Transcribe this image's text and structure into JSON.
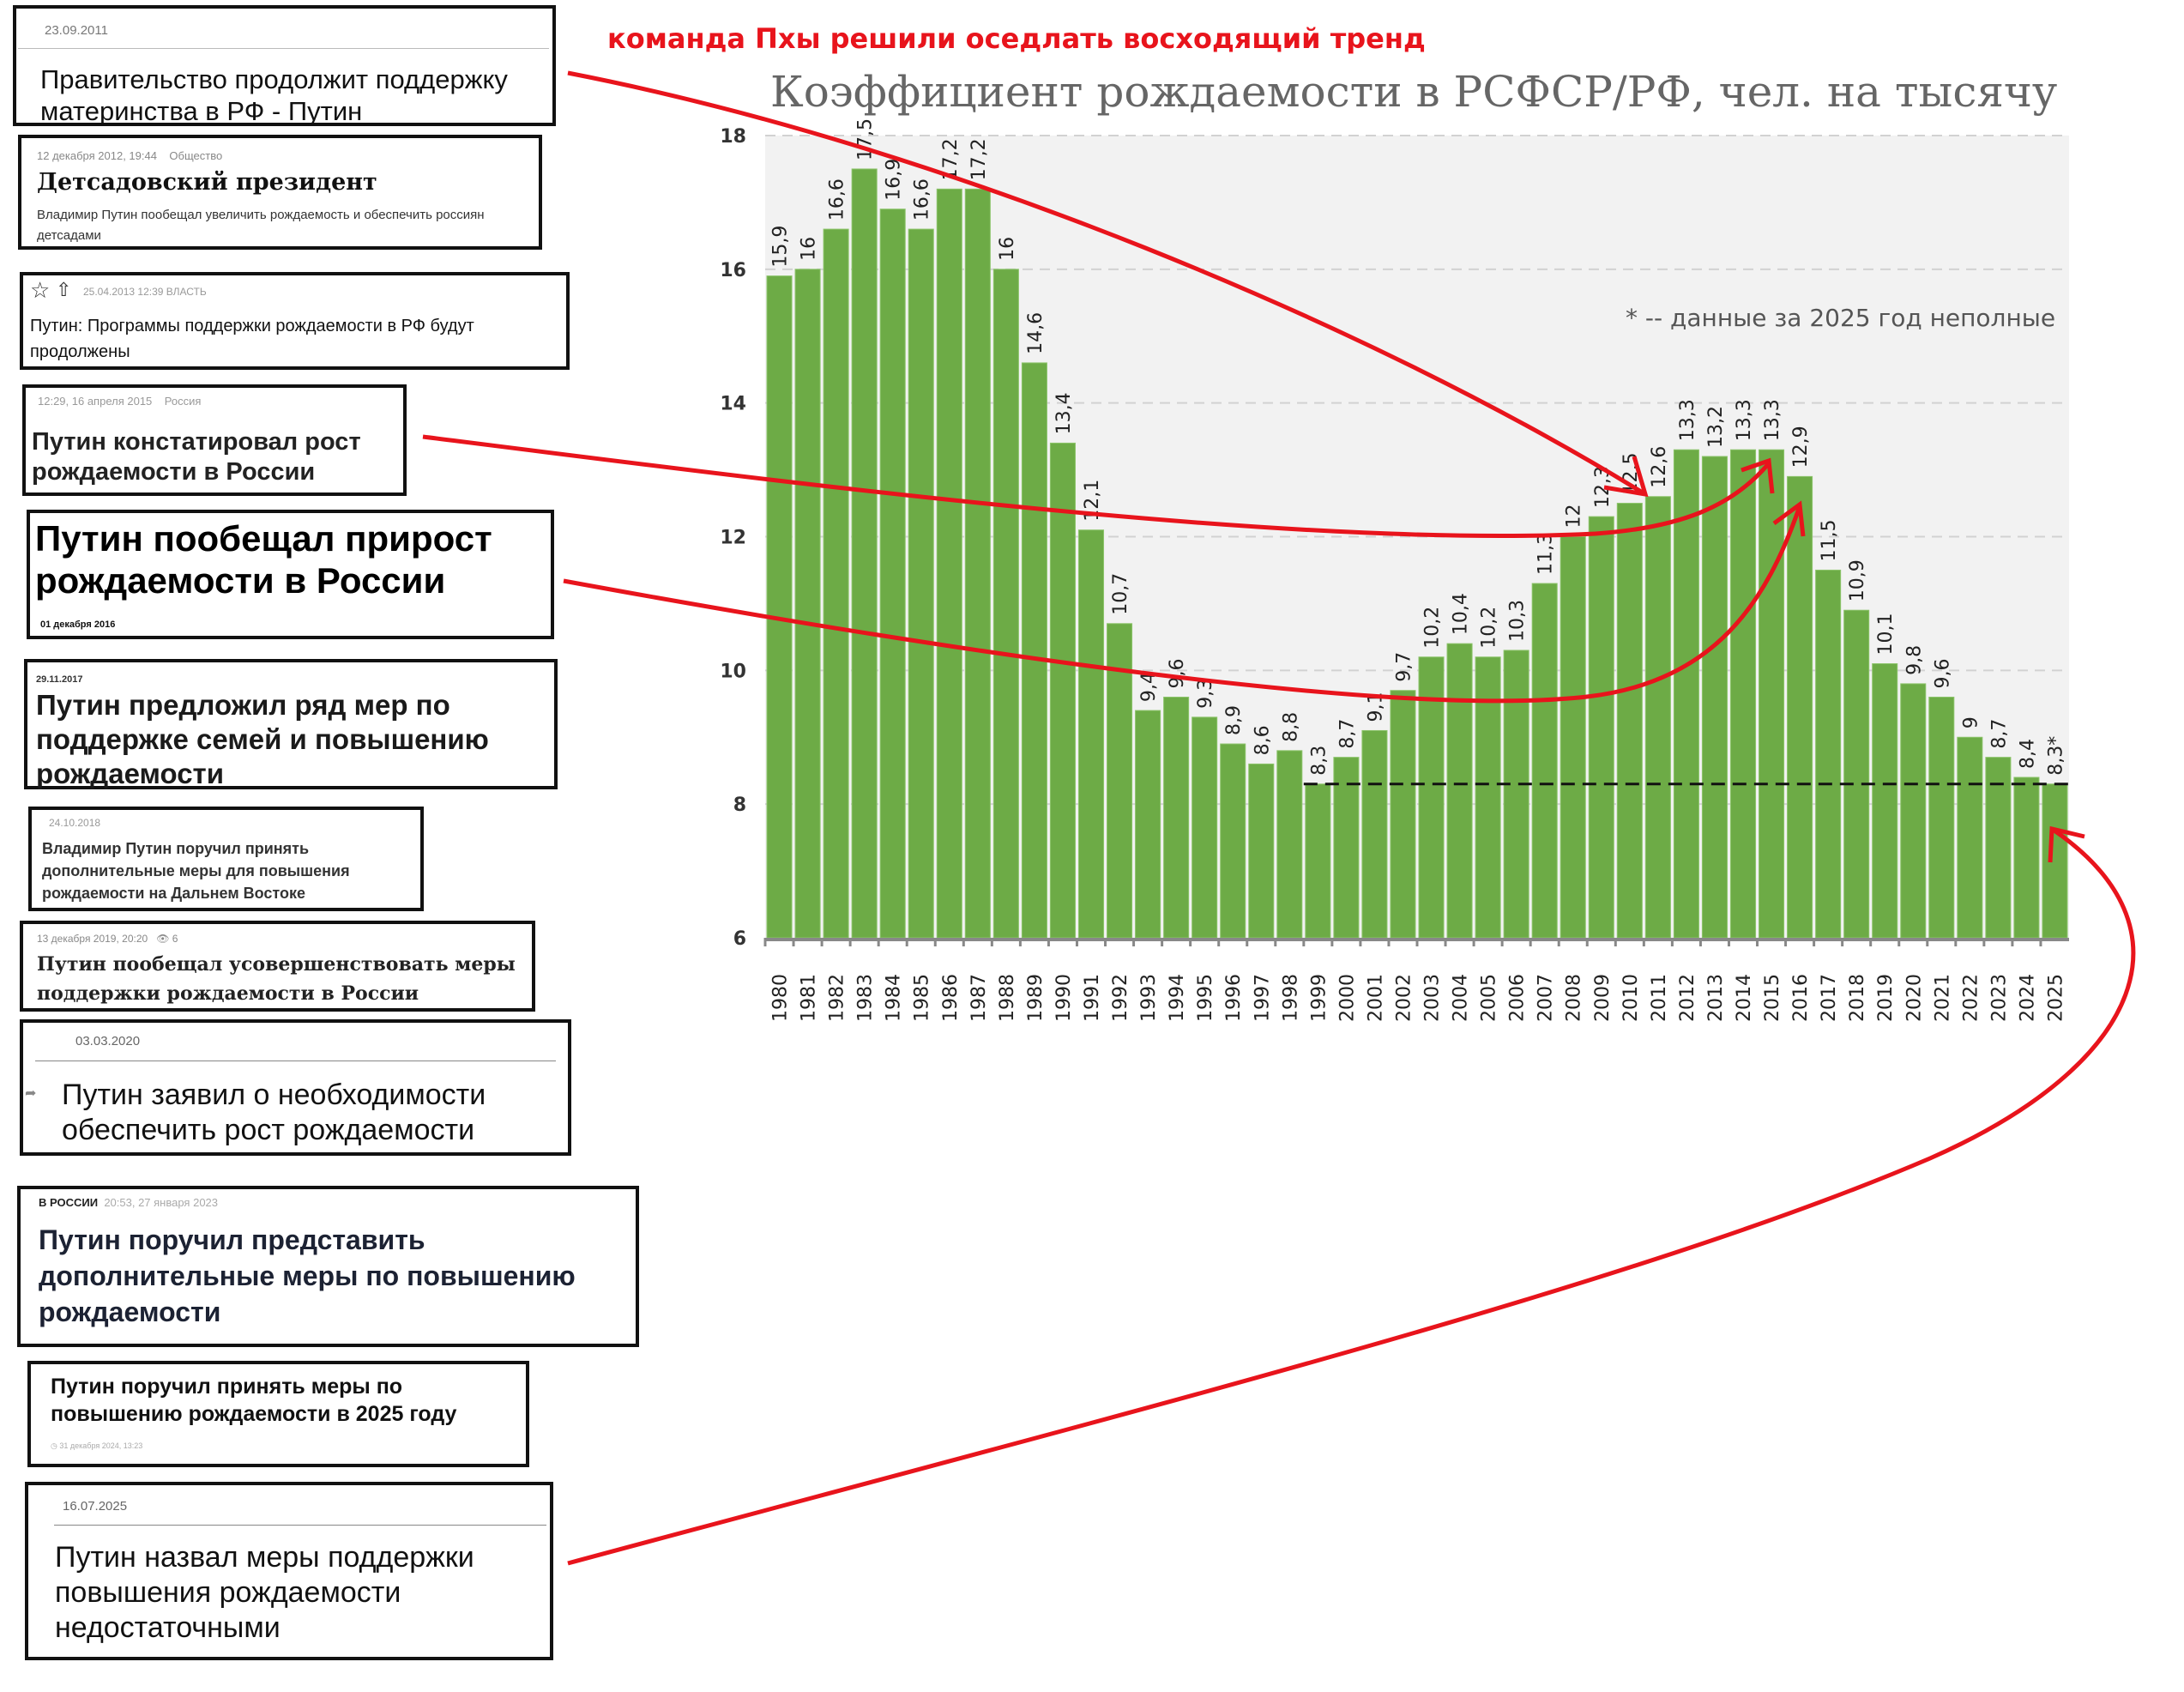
{
  "annotation": {
    "caption": "команда Пхы решили оседлать восходящий тренд",
    "arrow_color": "#e8141c"
  },
  "headlines": [
    {
      "date": "23.09.2011",
      "title": "Правительство продолжит поддержку материнства в РФ - Путин"
    },
    {
      "date": "12 декабря 2012, 19:44",
      "category": "Общество",
      "title": "Детсадовский президент",
      "subtitle": "Владимир Путин пообещал увеличить рождаемость и обеспечить россиян детсадами"
    },
    {
      "date": "25.04.2013 12:39",
      "category": "ВЛАСТЬ",
      "title": "Путин: Программы поддержки рождаемости в РФ будут продолжены"
    },
    {
      "date": "12:29, 16 апреля 2015",
      "category": "Россия",
      "title": "Путин констатировал рост рождаемости в России"
    },
    {
      "date": "01 декабря 2016",
      "title": "Путин пообещал прирост рождаемости в России"
    },
    {
      "date": "29.11.2017",
      "title": "Путин предложил ряд мер по поддержке семей и повышению рождаемости"
    },
    {
      "date": "24.10.2018",
      "title": "Владимир Путин поручил принять дополнительные меры для повышения рождаемости на Дальнем Востоке"
    },
    {
      "date": "13 декабря 2019, 20:20",
      "views": "6",
      "title": "Путин пообещал усовершенствовать меры поддержки рождаемости в России"
    },
    {
      "date": "03.03.2020",
      "title": "Путин заявил о необходимости обеспечить рост рождаемости"
    },
    {
      "date": "20:53, 27 января 2023",
      "category": "В РОССИИ",
      "title": "Путин поручил представить дополнительные меры по повышению рождаемости"
    },
    {
      "date": "31 декабря 2024, 13:23",
      "title": "Путин поручил принять меры по повышению рождаемости в 2025 году"
    },
    {
      "date": "16.07.2025",
      "title": "Путин назвал меры поддержки повышения рождаемости недостаточными"
    }
  ],
  "chart_data": {
    "type": "bar",
    "title": "Коэффициент рождаемости в РСФСР/РФ, чел. на тысячу",
    "note": "* -- данные за 2025 год неполные",
    "xlabel": "",
    "ylabel": "",
    "ylim": [
      6,
      18
    ],
    "yticks": [
      6,
      8,
      10,
      12,
      14,
      16,
      18
    ],
    "grid": true,
    "bar_color": "#6dab46",
    "plot_background": "#f2f2f2",
    "reference_line": {
      "value": 8.3,
      "style": "dashed",
      "color": "#111111"
    },
    "categories": [
      "1980",
      "1981",
      "1982",
      "1983",
      "1984",
      "1985",
      "1986",
      "1987",
      "1988",
      "1989",
      "1990",
      "1991",
      "1992",
      "1993",
      "1994",
      "1995",
      "1996",
      "1997",
      "1998",
      "1999",
      "2000",
      "2001",
      "2002",
      "2003",
      "2004",
      "2005",
      "2006",
      "2007",
      "2008",
      "2009",
      "2010",
      "2011",
      "2012",
      "2013",
      "2014",
      "2015",
      "2016",
      "2017",
      "2018",
      "2019",
      "2020",
      "2021",
      "2022",
      "2023",
      "2024",
      "2025"
    ],
    "values": [
      15.9,
      16,
      16.6,
      17.5,
      16.9,
      16.6,
      17.2,
      17.2,
      16,
      14.6,
      13.4,
      12.1,
      10.7,
      9.4,
      9.6,
      9.3,
      8.9,
      8.6,
      8.8,
      8.3,
      8.7,
      9.1,
      9.7,
      10.2,
      10.4,
      10.2,
      10.3,
      11.3,
      12,
      12.3,
      12.5,
      12.6,
      13.3,
      13.2,
      13.3,
      13.3,
      12.9,
      11.5,
      10.9,
      10.1,
      9.8,
      9.6,
      9,
      8.7,
      8.4,
      8.3
    ],
    "value_labels": [
      "15,9",
      "16",
      "16,6",
      "17,5",
      "16,9",
      "16,6",
      "17,2",
      "17,2",
      "16",
      "14,6",
      "13,4",
      "12,1",
      "10,7",
      "9,4",
      "9,6",
      "9,3",
      "8,9",
      "8,6",
      "8,8",
      "8,3",
      "8,7",
      "9,1",
      "9,7",
      "10,2",
      "10,4",
      "10,2",
      "10,3",
      "11,3",
      "12",
      "12,3",
      "12,5",
      "12,6",
      "13,3",
      "13,2",
      "13,3",
      "13,3",
      "12,9",
      "11,5",
      "10,9",
      "10,1",
      "9,8",
      "9,6",
      "9",
      "8,7",
      "8,4",
      "8,3*"
    ]
  }
}
